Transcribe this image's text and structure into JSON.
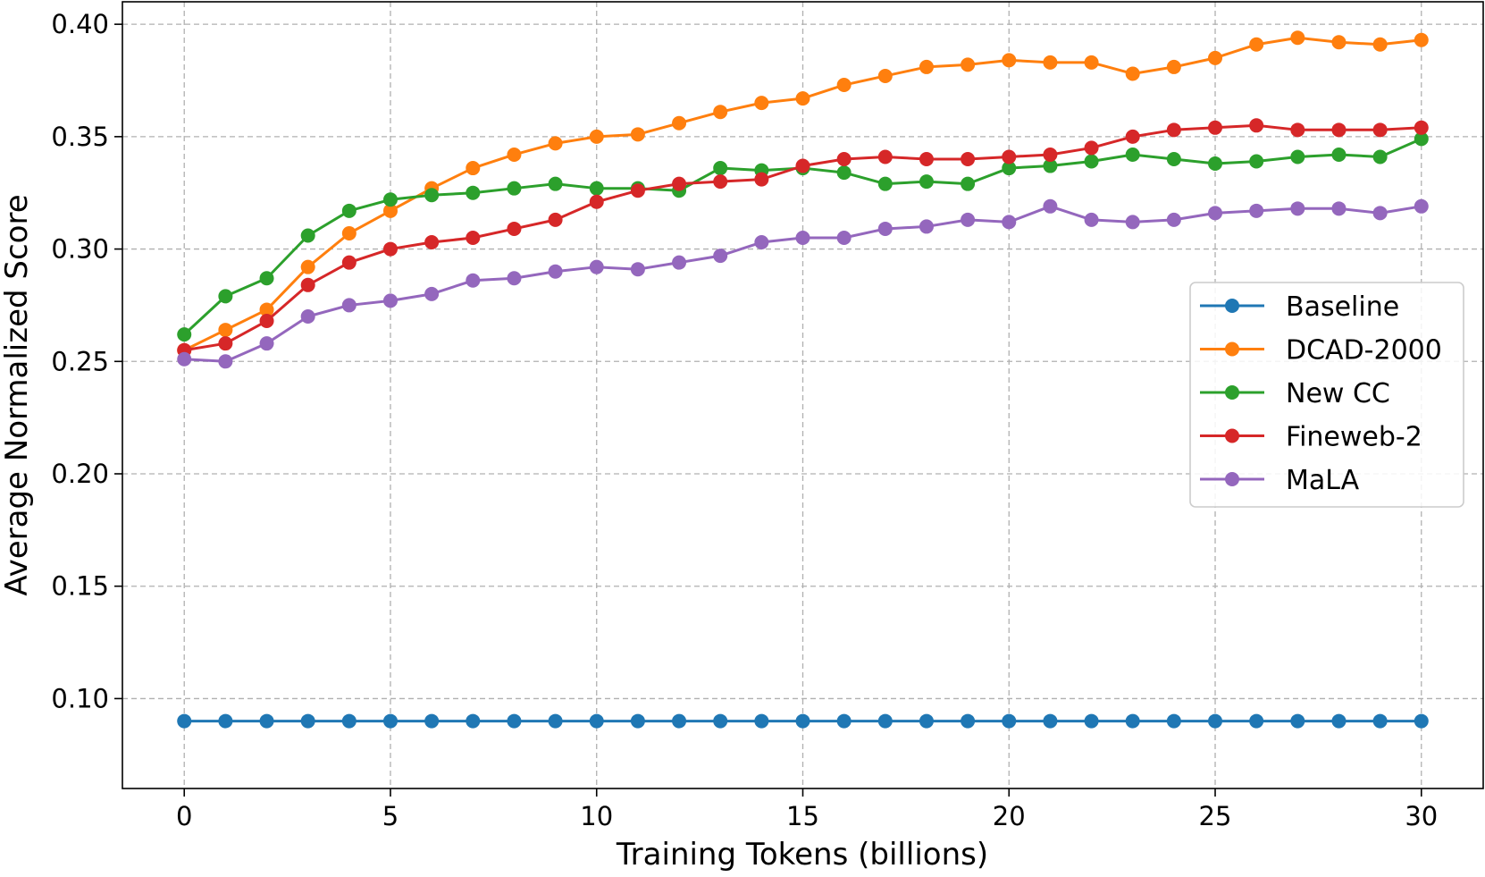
{
  "chart_data": {
    "type": "line",
    "title": "",
    "xlabel": "Training Tokens (billions)",
    "ylabel": "Average Normalized Score",
    "xlim": [
      -1.5,
      31.5
    ],
    "ylim": [
      0.06,
      0.41
    ],
    "xticks": [
      0,
      5,
      10,
      15,
      20,
      25,
      30
    ],
    "xtick_labels": [
      "0",
      "5",
      "10",
      "15",
      "20",
      "25",
      "30"
    ],
    "yticks": [
      0.1,
      0.15,
      0.2,
      0.25,
      0.3,
      0.35,
      0.4
    ],
    "ytick_labels": [
      "0.10",
      "0.15",
      "0.20",
      "0.25",
      "0.30",
      "0.35",
      "0.40"
    ],
    "grid": true,
    "legend_position": "center-right",
    "x": [
      0,
      1,
      2,
      3,
      4,
      5,
      6,
      7,
      8,
      9,
      10,
      11,
      12,
      13,
      14,
      15,
      16,
      17,
      18,
      19,
      20,
      21,
      22,
      23,
      24,
      25,
      26,
      27,
      28,
      29,
      30
    ],
    "series": [
      {
        "name": "Baseline",
        "color": "#1f77b4",
        "values": [
          0.09,
          0.09,
          0.09,
          0.09,
          0.09,
          0.09,
          0.09,
          0.09,
          0.09,
          0.09,
          0.09,
          0.09,
          0.09,
          0.09,
          0.09,
          0.09,
          0.09,
          0.09,
          0.09,
          0.09,
          0.09,
          0.09,
          0.09,
          0.09,
          0.09,
          0.09,
          0.09,
          0.09,
          0.09,
          0.09,
          0.09
        ]
      },
      {
        "name": "DCAD-2000",
        "color": "#ff7f0e",
        "values": [
          0.255,
          0.264,
          0.273,
          0.292,
          0.307,
          0.317,
          0.327,
          0.336,
          0.342,
          0.347,
          0.35,
          0.351,
          0.356,
          0.361,
          0.365,
          0.367,
          0.373,
          0.377,
          0.381,
          0.382,
          0.384,
          0.383,
          0.383,
          0.378,
          0.381,
          0.385,
          0.391,
          0.394,
          0.392,
          0.391,
          0.393
        ]
      },
      {
        "name": "New CC",
        "color": "#2ca02c",
        "values": [
          0.262,
          0.279,
          0.287,
          0.306,
          0.317,
          0.322,
          0.324,
          0.325,
          0.327,
          0.329,
          0.327,
          0.327,
          0.326,
          0.336,
          0.335,
          0.336,
          0.334,
          0.329,
          0.33,
          0.329,
          0.336,
          0.337,
          0.339,
          0.342,
          0.34,
          0.338,
          0.339,
          0.341,
          0.342,
          0.341,
          0.349
        ]
      },
      {
        "name": "Fineweb-2",
        "color": "#d62728",
        "values": [
          0.255,
          0.258,
          0.268,
          0.284,
          0.294,
          0.3,
          0.303,
          0.305,
          0.309,
          0.313,
          0.321,
          0.326,
          0.329,
          0.33,
          0.331,
          0.337,
          0.34,
          0.341,
          0.34,
          0.34,
          0.341,
          0.342,
          0.345,
          0.35,
          0.353,
          0.354,
          0.355,
          0.353,
          0.353,
          0.353,
          0.354
        ]
      },
      {
        "name": "MaLA",
        "color": "#9467bd",
        "values": [
          0.251,
          0.25,
          0.258,
          0.27,
          0.275,
          0.277,
          0.28,
          0.286,
          0.287,
          0.29,
          0.292,
          0.291,
          0.294,
          0.297,
          0.303,
          0.305,
          0.305,
          0.309,
          0.31,
          0.313,
          0.312,
          0.319,
          0.313,
          0.312,
          0.313,
          0.316,
          0.317,
          0.318,
          0.318,
          0.316,
          0.319
        ]
      }
    ]
  }
}
